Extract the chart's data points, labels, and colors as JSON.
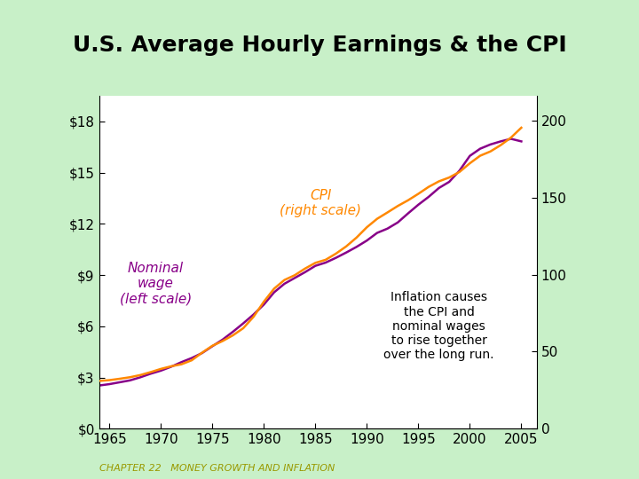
{
  "title": "U.S. Average Hourly Earnings & the CPI",
  "background_color": "#c8f0c8",
  "plot_background": "#ffffff",
  "title_fontsize": 18,
  "xlabel_ticks": [
    1965,
    1970,
    1975,
    1980,
    1985,
    1990,
    1995,
    2000,
    2005
  ],
  "left_yticks": [
    0,
    3,
    6,
    9,
    12,
    15,
    18
  ],
  "left_ylabels": [
    "$0",
    "$3",
    "$6",
    "$9",
    "$12",
    "$15",
    "$18"
  ],
  "right_yticks": [
    0,
    50,
    100,
    150,
    200
  ],
  "right_ylabels": [
    "0",
    "50",
    "100",
    "150",
    "200"
  ],
  "wage_color": "#880088",
  "cpi_color": "#ff8800",
  "annotation_text": "Inflation causes\nthe CPI and\nnominal wages\nto rise together\nover the long run.",
  "cpi_label": "CPI\n(right scale)",
  "wage_label": "Nominal\nwage\n(left scale)",
  "years": [
    1964,
    1965,
    1966,
    1967,
    1968,
    1969,
    1970,
    1971,
    1972,
    1973,
    1974,
    1975,
    1976,
    1977,
    1978,
    1979,
    1980,
    1981,
    1982,
    1983,
    1984,
    1985,
    1986,
    1987,
    1988,
    1989,
    1990,
    1991,
    1992,
    1993,
    1994,
    1995,
    1996,
    1997,
    1998,
    1999,
    2000,
    2001,
    2002,
    2003,
    2004,
    2005
  ],
  "wage": [
    2.53,
    2.61,
    2.72,
    2.83,
    3.01,
    3.22,
    3.4,
    3.63,
    3.9,
    4.14,
    4.43,
    4.83,
    5.22,
    5.68,
    6.17,
    6.69,
    7.27,
    7.99,
    8.49,
    8.83,
    9.17,
    9.54,
    9.73,
    10.01,
    10.32,
    10.65,
    11.02,
    11.47,
    11.72,
    12.08,
    12.61,
    13.12,
    13.58,
    14.1,
    14.46,
    15.12,
    15.98,
    16.4,
    16.65,
    16.83,
    16.98,
    16.83
  ],
  "cpi": [
    31.0,
    31.5,
    32.4,
    33.4,
    34.8,
    36.7,
    38.8,
    40.5,
    41.8,
    44.4,
    49.3,
    53.8,
    56.9,
    60.6,
    65.2,
    72.6,
    82.4,
    90.9,
    96.5,
    99.6,
    103.9,
    107.6,
    109.6,
    113.6,
    118.3,
    124.0,
    130.7,
    136.2,
    140.3,
    144.5,
    148.2,
    152.4,
    156.9,
    160.5,
    163.0,
    166.6,
    172.2,
    177.1,
    179.9,
    184.0,
    188.9,
    195.3
  ],
  "footer_text": "CHAPTER 22   MONEY GROWTH AND INFLATION",
  "footer_color": "#999900",
  "ylim_left": [
    0,
    19.5
  ],
  "ylim_right": [
    0,
    216
  ]
}
